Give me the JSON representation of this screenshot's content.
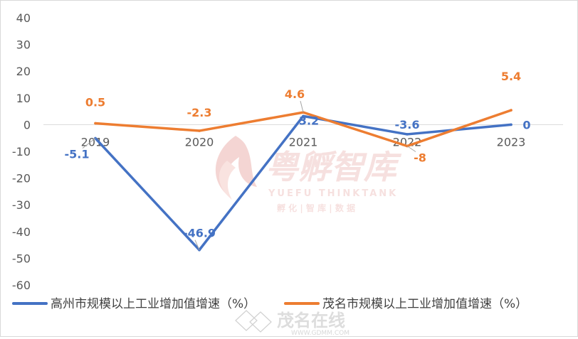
{
  "chart_data": {
    "type": "line",
    "categories": [
      "2019",
      "2020",
      "2021",
      "2022",
      "2023"
    ],
    "ylim": [
      -60,
      40
    ],
    "yticks": [
      40,
      30,
      20,
      10,
      0,
      -10,
      -20,
      -30,
      -40,
      -50,
      -60
    ],
    "grid": false,
    "legend_position": "bottom",
    "series": [
      {
        "name": "高州市规模以上工业增加值增速（%）",
        "color": "#4472C4",
        "values": [
          -5.1,
          -46.9,
          3.2,
          -3.6,
          0
        ]
      },
      {
        "name": "茂名市规模以上工业增加值增速（%）",
        "color": "#ED7D31",
        "values": [
          0.5,
          -2.3,
          4.6,
          -8,
          5.4
        ]
      }
    ]
  },
  "watermark": {
    "brand": "粤孵智库",
    "brand_en": "YUEFU  THINKTANK",
    "tagline": "孵 化 | 智 库 | 数 据",
    "site_name": "茂名在线",
    "site_url": "WWW.GDMM.COM"
  }
}
